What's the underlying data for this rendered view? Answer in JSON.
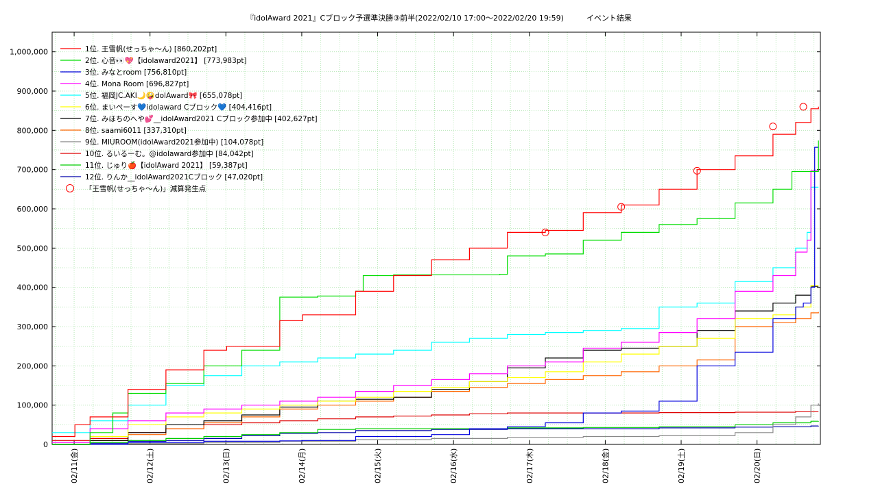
{
  "title": "『idolAward 2021』Cブロック予選準決勝③前半(2022/02/10 17:00～2022/02/20 19:59)　　　イベント結果",
  "chart_data": {
    "type": "line",
    "title": "『idolAward 2021』Cブロック予選準決勝③前半(2022/02/10 17:00～2022/02/20 19:59)　　　イベント結果",
    "xlabel": "",
    "ylabel": "",
    "xlim": [
      0,
      10.125
    ],
    "ylim": [
      0,
      1050000
    ],
    "grid": true,
    "legend_position": "top-left",
    "x_tick_labels": [
      "02/11(金)",
      "02/12(土)",
      "02/13(日)",
      "02/14(月)",
      "02/15(火)",
      "02/16(水)",
      "02/17(木)",
      "02/18(金)",
      "02/19(土)",
      "02/20(日)"
    ],
    "x_tick_positions": [
      0.29,
      1.29,
      2.29,
      3.29,
      4.29,
      5.29,
      6.29,
      7.29,
      8.29,
      9.29
    ],
    "y_tick_labels": [
      "0",
      "100,000",
      "200,000",
      "300,000",
      "400,000",
      "500,000",
      "600,000",
      "700,000",
      "800,000",
      "900,000",
      "1,000,000"
    ],
    "y_tick_values": [
      0,
      100000,
      200000,
      300000,
      400000,
      500000,
      600000,
      700000,
      800000,
      900000,
      1000000
    ],
    "series": [
      {
        "name": "1位. 王雪帆(せっちゃ～ん) [860,202pt]",
        "color": "#ff0000",
        "x": [
          0,
          0.3,
          0.5,
          1.0,
          1.5,
          2.0,
          2.3,
          3.0,
          3.3,
          4.0,
          4.5,
          5.0,
          5.5,
          6.0,
          6.5,
          7.0,
          7.5,
          8.0,
          8.5,
          9.0,
          9.5,
          9.8,
          10.0,
          10.1
        ],
        "y": [
          20000,
          50000,
          70000,
          140000,
          190000,
          240000,
          250000,
          315000,
          330000,
          390000,
          430000,
          470000,
          500000,
          540000,
          545000,
          590000,
          610000,
          650000,
          700000,
          735000,
          790000,
          820000,
          855000,
          860202
        ]
      },
      {
        "name": "2位. 心音👀💖【idolaward2021】 [773,983pt]",
        "color": "#00dd00",
        "x": [
          0,
          0.5,
          0.8,
          1.0,
          1.5,
          2.0,
          2.5,
          3.0,
          3.5,
          4.0,
          4.1,
          4.5,
          5.0,
          5.5,
          5.9,
          6.0,
          6.5,
          7.0,
          7.5,
          8.0,
          8.5,
          9.0,
          9.5,
          9.75,
          9.8,
          10.1
        ],
        "y": [
          0,
          30000,
          80000,
          130000,
          155000,
          200000,
          240000,
          375000,
          378000,
          390000,
          430000,
          432000,
          432000,
          432000,
          433000,
          480000,
          485000,
          520000,
          540000,
          560000,
          575000,
          615000,
          650000,
          695000,
          695000,
          773983
        ]
      },
      {
        "name": "3位. みなとroom [756,810pt]",
        "color": "#0000dd",
        "x": [
          0,
          1.0,
          2.0,
          3.0,
          3.3,
          4.0,
          5.0,
          5.5,
          6.0,
          6.5,
          7.0,
          7.5,
          8.0,
          8.5,
          9.0,
          9.5,
          9.8,
          9.9,
          10.0,
          10.05,
          10.1
        ],
        "y": [
          0,
          5000,
          8000,
          9000,
          10000,
          20000,
          25000,
          40000,
          45000,
          55000,
          80000,
          85000,
          110000,
          200000,
          235000,
          320000,
          350000,
          360000,
          400000,
          756810,
          756810
        ]
      },
      {
        "name": "4位. Mona Room [696,827pt]",
        "color": "#ff00ff",
        "x": [
          0,
          0.5,
          1.0,
          1.5,
          2.0,
          2.5,
          3.0,
          3.5,
          4.0,
          4.5,
          5.0,
          5.5,
          6.0,
          6.5,
          7.0,
          7.5,
          8.0,
          8.5,
          9.0,
          9.5,
          9.8,
          9.95,
          10.0,
          10.1
        ],
        "y": [
          5000,
          40000,
          60000,
          80000,
          90000,
          100000,
          110000,
          120000,
          135000,
          150000,
          165000,
          180000,
          200000,
          210000,
          245000,
          260000,
          285000,
          320000,
          390000,
          430000,
          490000,
          520000,
          696827,
          696827
        ]
      },
      {
        "name": "5位. 福岡JC.AKI🌙🤪dolAward🎀 [655,078pt]",
        "color": "#00ffff",
        "x": [
          0,
          0.5,
          1.0,
          1.5,
          2.0,
          2.5,
          3.0,
          3.5,
          4.0,
          4.5,
          5.0,
          5.5,
          6.0,
          6.5,
          7.0,
          7.5,
          8.0,
          8.5,
          9.0,
          9.5,
          9.8,
          9.95,
          10.0,
          10.1
        ],
        "y": [
          30000,
          60000,
          100000,
          150000,
          175000,
          200000,
          210000,
          220000,
          230000,
          240000,
          260000,
          270000,
          280000,
          285000,
          290000,
          295000,
          350000,
          360000,
          415000,
          450000,
          500000,
          540000,
          655078,
          655078
        ]
      },
      {
        "name": "6位. まいぺーす💙idolaward Cブロック💙 [404,416pt]",
        "color": "#ffff00",
        "x": [
          0,
          0.5,
          1.0,
          1.5,
          2.0,
          2.5,
          3.0,
          3.5,
          4.0,
          4.5,
          5.0,
          5.5,
          6.0,
          6.5,
          7.0,
          7.5,
          8.0,
          8.5,
          9.0,
          9.5,
          9.8,
          10.0,
          10.1
        ],
        "y": [
          0,
          20000,
          50000,
          70000,
          80000,
          90000,
          100000,
          110000,
          120000,
          135000,
          145000,
          160000,
          170000,
          185000,
          210000,
          230000,
          250000,
          270000,
          320000,
          330000,
          350000,
          404416,
          404416
        ]
      },
      {
        "name": "7位. みほちのへや💕__idolAward2021 Cブロック参加中 [402,627pt]",
        "color": "#000000",
        "x": [
          0,
          0.5,
          1.0,
          1.5,
          2.0,
          2.5,
          3.0,
          3.5,
          4.0,
          4.5,
          5.0,
          5.5,
          6.0,
          6.5,
          7.0,
          7.5,
          8.0,
          8.5,
          9.0,
          9.5,
          9.8,
          10.0,
          10.1
        ],
        "y": [
          0,
          10000,
          30000,
          50000,
          60000,
          75000,
          95000,
          110000,
          115000,
          120000,
          140000,
          160000,
          195000,
          220000,
          240000,
          245000,
          250000,
          290000,
          340000,
          360000,
          380000,
          402627,
          402627
        ]
      },
      {
        "name": "8位. saami6011 [337,310pt]",
        "color": "#ff6600",
        "x": [
          0,
          0.5,
          1.0,
          1.5,
          2.0,
          2.5,
          3.0,
          3.5,
          4.0,
          4.5,
          5.0,
          5.5,
          6.0,
          6.5,
          7.0,
          7.5,
          8.0,
          8.5,
          9.0,
          9.5,
          9.8,
          10.0,
          10.1
        ],
        "y": [
          0,
          10000,
          25000,
          40000,
          55000,
          70000,
          90000,
          100000,
          110000,
          120000,
          135000,
          145000,
          155000,
          165000,
          175000,
          185000,
          200000,
          215000,
          300000,
          310000,
          320000,
          335000,
          337310
        ]
      },
      {
        "name": "9位. MIUROOM(idolAward2021参加中) [104,078pt]",
        "color": "#888888",
        "x": [
          0,
          1.0,
          2.0,
          3.0,
          4.0,
          5.0,
          6.0,
          7.0,
          8.0,
          9.0,
          9.5,
          9.8,
          10.0,
          10.1
        ],
        "y": [
          0,
          2000,
          5000,
          8000,
          12000,
          15000,
          18000,
          20000,
          22000,
          30000,
          50000,
          70000,
          100000,
          104078
        ]
      },
      {
        "name": "10位. るいるーむ。@idolaward参加中 [84,042pt]",
        "color": "#dd0000",
        "x": [
          0,
          0.5,
          1.0,
          1.5,
          2.0,
          2.5,
          3.0,
          3.5,
          4.0,
          4.5,
          5.0,
          5.5,
          6.0,
          6.5,
          7.0,
          8.0,
          9.0,
          9.8,
          10.1
        ],
        "y": [
          10000,
          15000,
          30000,
          40000,
          50000,
          55000,
          60000,
          65000,
          70000,
          72000,
          75000,
          78000,
          80000,
          80000,
          80000,
          81000,
          82000,
          84000,
          84042
        ]
      },
      {
        "name": "11位. じゅり🍎【idolAward 2021】 [59,387pt]",
        "color": "#00cc00",
        "x": [
          0,
          0.5,
          1.0,
          1.5,
          2.0,
          2.5,
          3.0,
          3.5,
          4.0,
          5.0,
          6.0,
          7.0,
          8.0,
          9.0,
          9.5,
          10.0,
          10.1
        ],
        "y": [
          0,
          5000,
          10000,
          15000,
          20000,
          25000,
          30000,
          38000,
          40000,
          40000,
          42000,
          43000,
          45000,
          50000,
          55000,
          59000,
          59387
        ]
      },
      {
        "name": "12位. りんか__idolAward2021Cブロック [47,020pt]",
        "color": "#0000aa",
        "x": [
          0,
          0.5,
          1.0,
          1.5,
          2.0,
          2.5,
          3.0,
          3.5,
          4.0,
          5.0,
          6.0,
          7.0,
          8.0,
          9.0,
          9.5,
          10.0,
          10.1
        ],
        "y": [
          0,
          3000,
          8000,
          10000,
          15000,
          22000,
          28000,
          30000,
          35000,
          38000,
          40000,
          40000,
          42000,
          44000,
          45000,
          47000,
          47020
        ]
      }
    ],
    "markers": {
      "name": "「王雪帆(せっちゃ～ん)」減算発生点",
      "color": "#ff0000",
      "x": [
        6.5,
        7.5,
        8.5,
        9.5,
        9.9
      ],
      "y": [
        540000,
        605000,
        697000,
        810000,
        860000
      ]
    }
  }
}
